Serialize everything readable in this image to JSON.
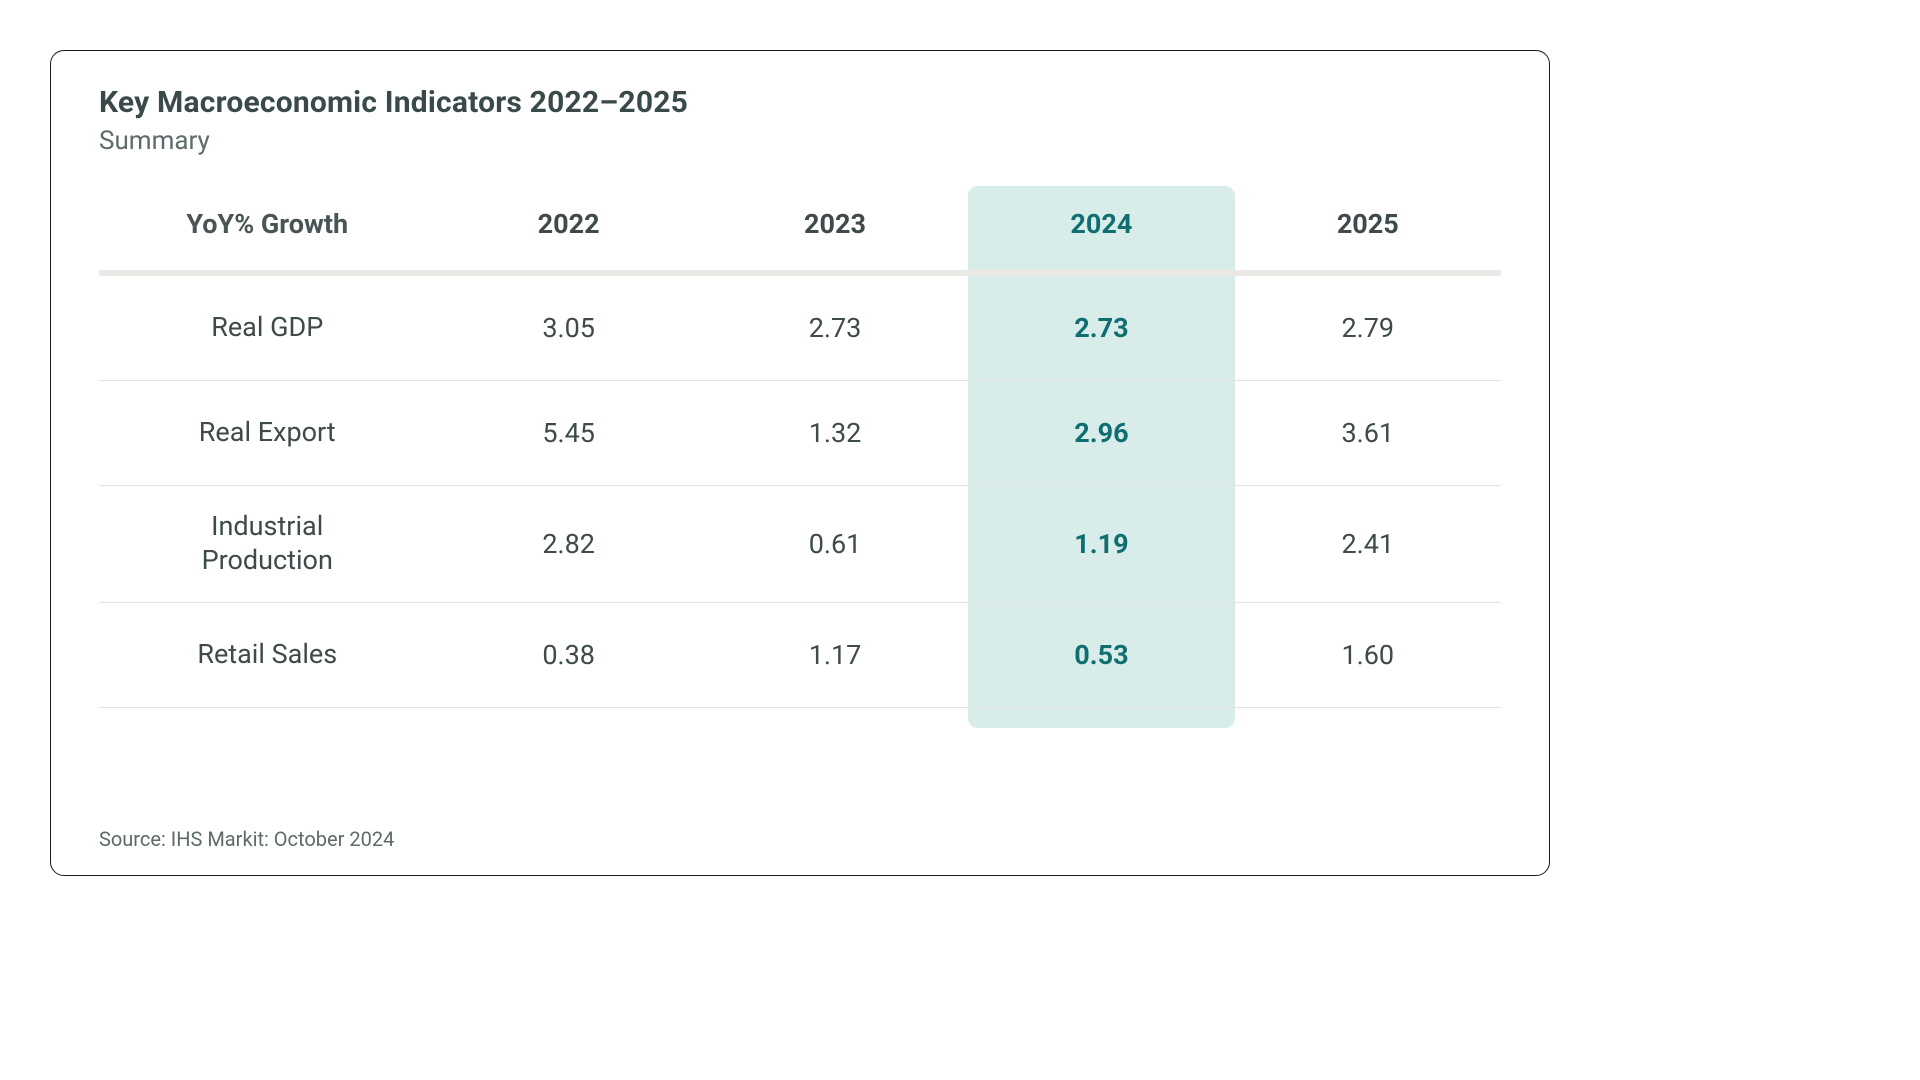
{
  "title": "Key Macroeconomic Indicators 2022–2025",
  "subtitle": "Summary",
  "source": "Source: IHS Markit: October 2024",
  "table": {
    "type": "table",
    "row_header": "YoY% Growth",
    "columns": [
      "2022",
      "2023",
      "2024",
      "2025"
    ],
    "highlight_column_index": 2,
    "rows": [
      {
        "label": "Real GDP",
        "values": [
          "3.05",
          "2.73",
          "2.73",
          "2.79"
        ]
      },
      {
        "label": "Real Export",
        "values": [
          "5.45",
          "1.32",
          "2.96",
          "3.61"
        ]
      },
      {
        "label": "Industrial Production",
        "values": [
          "2.82",
          "0.61",
          "1.19",
          "2.41"
        ]
      },
      {
        "label": "Retail Sales",
        "values": [
          "0.38",
          "1.17",
          "0.53",
          "1.60"
        ]
      }
    ],
    "colors": {
      "text": "#3f4a4a",
      "muted_text": "#5d6b6b",
      "header_rule": "#ebe9e6",
      "row_rule": "#e3e3e3",
      "highlight_bg": "#d8ecea",
      "highlight_text": "#0f6e70",
      "card_border": "#1a1a1a",
      "background": "#ffffff"
    },
    "font_sizes": {
      "title": 30,
      "subtitle": 26,
      "header": 27,
      "cell": 27,
      "source": 20
    }
  }
}
